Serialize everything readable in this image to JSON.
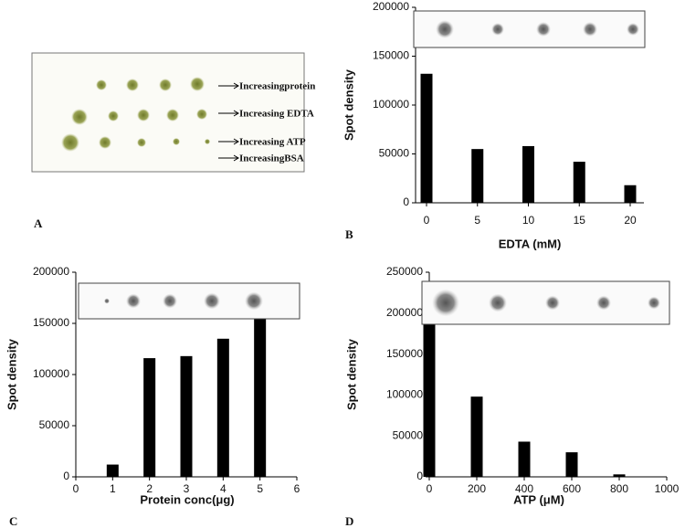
{
  "figure_a": {
    "label": "A",
    "annotations": [
      "Increasingprotein",
      "Increasing EDTA",
      "Increasing ATP",
      "IncreasingBSA"
    ]
  },
  "chart_data": [
    {
      "type": "bar",
      "panel_label": "B",
      "xlabel": "EDTA (mM)",
      "ylabel": "Spot density",
      "categories": [
        "0",
        "5",
        "10",
        "15",
        "20"
      ],
      "values": [
        132000,
        55000,
        58000,
        42000,
        18000
      ],
      "color": "#000000",
      "ylim": [
        0,
        200000
      ],
      "yticks": [
        0,
        50000,
        100000,
        150000,
        200000
      ],
      "grid": false
    },
    {
      "type": "bar",
      "panel_label": "C",
      "xlabel": "Protein conc(μg)",
      "ylabel": "Spot density",
      "x": [
        1,
        2,
        3,
        4,
        5
      ],
      "values": [
        12000,
        116000,
        118000,
        135000,
        158000
      ],
      "color": "#000000",
      "xlim": [
        0,
        6
      ],
      "xticks": [
        0,
        1,
        2,
        3,
        4,
        5,
        6
      ],
      "ylim": [
        0,
        200000
      ],
      "yticks": [
        0,
        50000,
        100000,
        150000,
        200000
      ],
      "grid": false
    },
    {
      "type": "bar",
      "panel_label": "D",
      "xlabel": "ATP (μM)",
      "ylabel": "Spot density",
      "x": [
        0,
        200,
        400,
        600,
        800
      ],
      "values": [
        187000,
        98000,
        43000,
        30000,
        3000
      ],
      "color": "#000000",
      "xlim": [
        0,
        1000
      ],
      "xticks": [
        0,
        200,
        400,
        600,
        800,
        1000
      ],
      "ylim": [
        0,
        250000
      ],
      "yticks": [
        0,
        50000,
        100000,
        150000,
        200000,
        250000
      ],
      "grid": false
    }
  ]
}
